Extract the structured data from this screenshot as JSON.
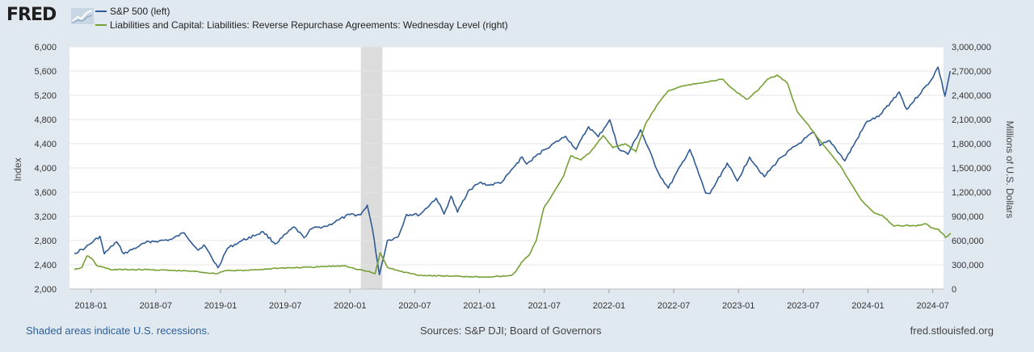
{
  "header": {
    "logo_text": "FRED",
    "logo_icon": "chart-line-icon"
  },
  "colors": {
    "background": "#e1e9f0",
    "plot_bg": "#ffffff",
    "sp500": "#305b94",
    "rrp": "#76a135",
    "recession": "#dcdcdc",
    "grid": "#e4e4e4"
  },
  "chart_data": {
    "type": "line",
    "title": "",
    "xlabel": "",
    "ylabel": "Index",
    "ylabel_right": "Millions of U.S. Dollars",
    "x_tick_labels": [
      "2018-01",
      "2018-07",
      "2019-01",
      "2019-07",
      "2020-01",
      "2020-07",
      "2021-01",
      "2021-07",
      "2022-01",
      "2022-07",
      "2023-01",
      "2023-07",
      "2024-01",
      "2024-07"
    ],
    "x_range": [
      "2017-11",
      "2024-08"
    ],
    "ylim_left": [
      2000,
      6000
    ],
    "y_ticks_left": [
      "2,000",
      "2,400",
      "2,800",
      "3,200",
      "3,600",
      "4,000",
      "4,400",
      "4,800",
      "5,200",
      "5,600",
      "6,000"
    ],
    "ylim_right": [
      0,
      3000000
    ],
    "y_ticks_right": [
      "0",
      "300,000",
      "600,000",
      "900,000",
      "1,200,000",
      "1,500,000",
      "1,800,000",
      "2,100,000",
      "2,400,000",
      "2,700,000",
      "3,000,000"
    ],
    "recessions": [
      {
        "start": "2020-02",
        "end": "2020-04"
      }
    ],
    "series": [
      {
        "name": "S&P 500 (left)",
        "axis": "left",
        "points": [
          [
            "2017-11-15",
            2590
          ],
          [
            "2017-12-15",
            2680
          ],
          [
            "2018-01-26",
            2872
          ],
          [
            "2018-02-08",
            2581
          ],
          [
            "2018-03-12",
            2780
          ],
          [
            "2018-04-02",
            2582
          ],
          [
            "2018-05-15",
            2710
          ],
          [
            "2018-06-12",
            2786
          ],
          [
            "2018-07-10",
            2793
          ],
          [
            "2018-08-15",
            2820
          ],
          [
            "2018-09-20",
            2930
          ],
          [
            "2018-10-29",
            2640
          ],
          [
            "2018-11-15",
            2730
          ],
          [
            "2018-12-24",
            2351
          ],
          [
            "2019-01-20",
            2670
          ],
          [
            "2019-03-01",
            2800
          ],
          [
            "2019-04-30",
            2945
          ],
          [
            "2019-06-03",
            2744
          ],
          [
            "2019-07-26",
            3025
          ],
          [
            "2019-08-23",
            2847
          ],
          [
            "2019-09-15",
            3000
          ],
          [
            "2019-10-30",
            3046
          ],
          [
            "2019-11-29",
            3140
          ],
          [
            "2019-12-31",
            3230
          ],
          [
            "2020-01-31",
            3225
          ],
          [
            "2020-02-19",
            3386
          ],
          [
            "2020-03-03",
            3000
          ],
          [
            "2020-03-23",
            2237
          ],
          [
            "2020-04-15",
            2800
          ],
          [
            "2020-05-15",
            2860
          ],
          [
            "2020-06-08",
            3232
          ],
          [
            "2020-07-15",
            3226
          ],
          [
            "2020-08-31",
            3500
          ],
          [
            "2020-09-23",
            3237
          ],
          [
            "2020-10-12",
            3534
          ],
          [
            "2020-10-30",
            3270
          ],
          [
            "2020-11-30",
            3621
          ],
          [
            "2020-12-31",
            3756
          ],
          [
            "2021-01-29",
            3714
          ],
          [
            "2021-03-04",
            3768
          ],
          [
            "2021-04-30",
            4181
          ],
          [
            "2021-05-12",
            4063
          ],
          [
            "2021-06-30",
            4297
          ],
          [
            "2021-08-31",
            4523
          ],
          [
            "2021-09-30",
            4307
          ],
          [
            "2021-11-04",
            4680
          ],
          [
            "2021-12-01",
            4513
          ],
          [
            "2022-01-03",
            4796
          ],
          [
            "2022-01-27",
            4326
          ],
          [
            "2022-02-24",
            4225
          ],
          [
            "2022-03-29",
            4631
          ],
          [
            "2022-05-20",
            3901
          ],
          [
            "2022-06-16",
            3666
          ],
          [
            "2022-08-16",
            4305
          ],
          [
            "2022-09-30",
            3585
          ],
          [
            "2022-10-12",
            3577
          ],
          [
            "2022-11-30",
            4080
          ],
          [
            "2022-12-28",
            3783
          ],
          [
            "2023-02-02",
            4179
          ],
          [
            "2023-03-13",
            3855
          ],
          [
            "2023-04-28",
            4169
          ],
          [
            "2023-06-30",
            4450
          ],
          [
            "2023-07-31",
            4589
          ],
          [
            "2023-08-18",
            4370
          ],
          [
            "2023-09-15",
            4450
          ],
          [
            "2023-10-27",
            4117
          ],
          [
            "2023-12-29",
            4770
          ],
          [
            "2024-01-31",
            4846
          ],
          [
            "2024-03-28",
            5254
          ],
          [
            "2024-04-19",
            4967
          ],
          [
            "2024-06-28",
            5460
          ],
          [
            "2024-07-16",
            5667
          ],
          [
            "2024-08-05",
            5186
          ],
          [
            "2024-08-20",
            5600
          ]
        ]
      },
      {
        "name": "Liabilities and Capital: Liabilities: Reverse Repurchase Agreements: Wednesday Level (right)",
        "axis": "right",
        "points": [
          [
            "2017-11-15",
            240000
          ],
          [
            "2017-12-06",
            270000
          ],
          [
            "2017-12-20",
            410000
          ],
          [
            "2018-01-03",
            380000
          ],
          [
            "2018-01-17",
            290000
          ],
          [
            "2018-02-28",
            240000
          ],
          [
            "2018-06-15",
            240000
          ],
          [
            "2018-10-15",
            220000
          ],
          [
            "2018-12-19",
            190000
          ],
          [
            "2019-01-16",
            230000
          ],
          [
            "2019-03-15",
            230000
          ],
          [
            "2019-06-15",
            260000
          ],
          [
            "2019-09-15",
            270000
          ],
          [
            "2019-12-18",
            290000
          ],
          [
            "2020-01-15",
            250000
          ],
          [
            "2020-02-19",
            220000
          ],
          [
            "2020-03-11",
            190000
          ],
          [
            "2020-03-25",
            450000
          ],
          [
            "2020-04-15",
            270000
          ],
          [
            "2020-05-20",
            220000
          ],
          [
            "2020-07-15",
            170000
          ],
          [
            "2020-10-15",
            160000
          ],
          [
            "2021-01-15",
            150000
          ],
          [
            "2021-03-17",
            160000
          ],
          [
            "2021-03-31",
            170000
          ],
          [
            "2021-04-14",
            230000
          ],
          [
            "2021-04-28",
            330000
          ],
          [
            "2021-05-19",
            420000
          ],
          [
            "2021-06-09",
            600000
          ],
          [
            "2021-06-30",
            1000000
          ],
          [
            "2021-07-28",
            1200000
          ],
          [
            "2021-08-25",
            1400000
          ],
          [
            "2021-09-15",
            1650000
          ],
          [
            "2021-10-13",
            1600000
          ],
          [
            "2021-11-10",
            1700000
          ],
          [
            "2021-12-15",
            1900000
          ],
          [
            "2022-01-12",
            1750000
          ],
          [
            "2022-02-16",
            1800000
          ],
          [
            "2022-03-16",
            1700000
          ],
          [
            "2022-04-13",
            2050000
          ],
          [
            "2022-05-18",
            2300000
          ],
          [
            "2022-06-15",
            2450000
          ],
          [
            "2022-07-13",
            2500000
          ],
          [
            "2022-09-14",
            2550000
          ],
          [
            "2022-11-16",
            2600000
          ],
          [
            "2022-12-14",
            2480000
          ],
          [
            "2023-01-25",
            2350000
          ],
          [
            "2023-02-22",
            2450000
          ],
          [
            "2023-03-22",
            2600000
          ],
          [
            "2023-04-19",
            2650000
          ],
          [
            "2023-05-17",
            2550000
          ],
          [
            "2023-06-14",
            2200000
          ],
          [
            "2023-07-12",
            2050000
          ],
          [
            "2023-08-16",
            1850000
          ],
          [
            "2023-09-13",
            1700000
          ],
          [
            "2023-10-18",
            1500000
          ],
          [
            "2023-11-15",
            1300000
          ],
          [
            "2023-12-13",
            1100000
          ],
          [
            "2024-01-17",
            950000
          ],
          [
            "2024-02-14",
            900000
          ],
          [
            "2024-03-13",
            780000
          ],
          [
            "2024-04-17",
            790000
          ],
          [
            "2024-05-15",
            780000
          ],
          [
            "2024-06-12",
            810000
          ],
          [
            "2024-06-26",
            760000
          ],
          [
            "2024-07-17",
            740000
          ],
          [
            "2024-08-07",
            640000
          ],
          [
            "2024-08-21",
            690000
          ]
        ]
      }
    ]
  },
  "footer": {
    "note": "Shaded areas indicate U.S. recessions.",
    "sources": "Sources: S&P DJI; Board of Governors",
    "site": "fred.stlouisfed.org"
  }
}
